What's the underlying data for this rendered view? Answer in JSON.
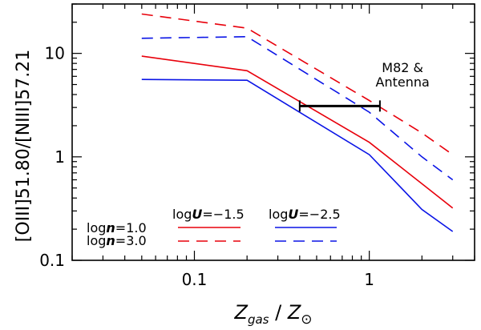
{
  "chart_data": {
    "type": "line",
    "xscale": "log",
    "yscale": "log",
    "xlim": [
      0.02,
      4.0
    ],
    "ylim": [
      0.1,
      30.0
    ],
    "xlabel": {
      "main": "Z",
      "sub1": "gas",
      "sep": " / ",
      "main2": "Z",
      "sub2": "⊙"
    },
    "ylabel": "[OIII]51.80/[NIII]57.21",
    "xticks": [
      {
        "value": 0.1,
        "label": "0.1"
      },
      {
        "value": 1,
        "label": "1"
      }
    ],
    "yticks": [
      {
        "value": 0.1,
        "label": "0.1"
      },
      {
        "value": 1,
        "label": "1"
      },
      {
        "value": 10,
        "label": "10"
      }
    ],
    "series": [
      {
        "name": "logU=-1.5, logn=1.0",
        "color": "#e8000b",
        "dash": "solid",
        "x": [
          0.05,
          0.2,
          1.0,
          2.0,
          3.0
        ],
        "y": [
          9.4,
          6.8,
          1.38,
          0.55,
          0.32
        ]
      },
      {
        "name": "logU=-1.5, logn=3.0",
        "color": "#e8000b",
        "dash": "dashed",
        "x": [
          0.05,
          0.2,
          1.0,
          2.0,
          3.0
        ],
        "y": [
          24.0,
          17.5,
          3.5,
          1.7,
          1.05
        ]
      },
      {
        "name": "logU=-2.5, logn=1.0",
        "color": "#0a14e6",
        "dash": "solid",
        "x": [
          0.05,
          0.2,
          1.0,
          2.0,
          3.0
        ],
        "y": [
          5.6,
          5.5,
          1.05,
          0.31,
          0.19
        ]
      },
      {
        "name": "logU=-2.5, logn=3.0",
        "color": "#0a14e6",
        "dash": "dashed",
        "x": [
          0.05,
          0.2,
          1.0,
          2.0,
          3.0
        ],
        "y": [
          14.0,
          14.5,
          2.7,
          1.0,
          0.6
        ]
      }
    ],
    "errorbar": {
      "x_min": 0.4,
      "x_max": 1.15,
      "y": 3.1
    },
    "annotation": {
      "line1": "M82 &",
      "line2": "Antenna",
      "x": 1.55,
      "y": 6.6
    },
    "legend": {
      "col_headers": [
        {
          "prefix": "log",
          "var": "U",
          "value": "=−1.5"
        },
        {
          "prefix": "log",
          "var": "U",
          "value": "=−2.5"
        }
      ],
      "row_labels": [
        {
          "prefix": "log",
          "var": "n",
          "value": "=1.0"
        },
        {
          "prefix": "log",
          "var": "n",
          "value": "=3.0"
        }
      ],
      "placement": "bottom-left"
    }
  }
}
